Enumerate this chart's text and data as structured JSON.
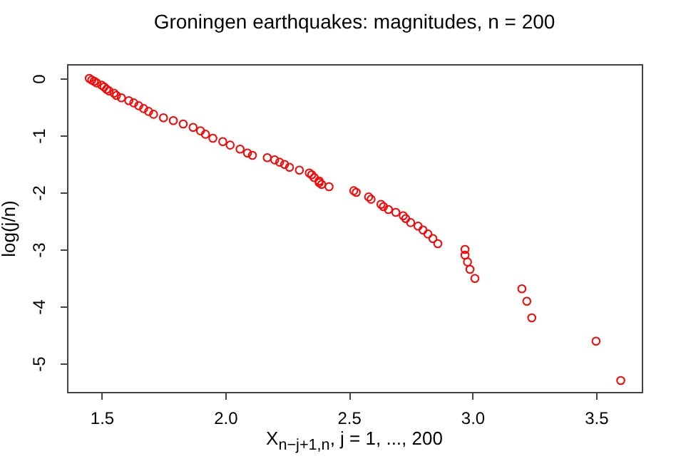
{
  "chart_data": {
    "type": "scatter",
    "title": "Groningen earthquakes: magnitudes,  n = 200",
    "xlabel": "X$_{n−j+1,n}$,  j = 1, ..., 200",
    "ylabel": "log(j/n)",
    "xlim": [
      1.36,
      3.685
    ],
    "ylim": [
      -5.5,
      0.25
    ],
    "xticks": [
      {
        "value": 1.5,
        "label": "1.5"
      },
      {
        "value": 2,
        "label": "2.0"
      },
      {
        "value": 2.5,
        "label": "2.5"
      },
      {
        "value": 3,
        "label": "3.0"
      },
      {
        "value": 3.5,
        "label": "3.5"
      }
    ],
    "yticks": [
      0,
      -1,
      -2,
      -3,
      -4,
      -5
    ],
    "grid": false,
    "legend": false,
    "marker": "circle",
    "series": [
      {
        "color": "#ff0000",
        "x": [
          3.6,
          3.5,
          3.24,
          3.22,
          3.2,
          3.01,
          2.99,
          2.98,
          2.97,
          2.97,
          2.86,
          2.84,
          2.82,
          2.8,
          2.78,
          2.75,
          2.73,
          2.72,
          2.69,
          2.66,
          2.64,
          2.63,
          2.59,
          2.58,
          2.53,
          2.52,
          2.42,
          2.39,
          2.38,
          2.38,
          2.36,
          2.35,
          2.34,
          2.3,
          2.26,
          2.24,
          2.22,
          2.2,
          2.17,
          2.11,
          2.09,
          2.06,
          2.02,
          1.99,
          1.95,
          1.92,
          1.9,
          1.87,
          1.83,
          1.79,
          1.75,
          1.71,
          1.69,
          1.67,
          1.65,
          1.63,
          1.61,
          1.58,
          1.56,
          1.55,
          1.53,
          1.52,
          1.51,
          1.5,
          1.48,
          1.47,
          1.46,
          1.45
        ],
        "values": [
          -5.3,
          -4.61,
          -4.2,
          -3.91,
          -3.69,
          -3.51,
          -3.35,
          -3.22,
          -3.1,
          -3.0,
          -2.9,
          -2.81,
          -2.73,
          -2.66,
          -2.59,
          -2.53,
          -2.46,
          -2.41,
          -2.35,
          -2.3,
          -2.25,
          -2.21,
          -2.12,
          -2.08,
          -2.0,
          -1.97,
          -1.9,
          -1.86,
          -1.83,
          -1.8,
          -1.74,
          -1.69,
          -1.66,
          -1.61,
          -1.56,
          -1.51,
          -1.47,
          -1.43,
          -1.39,
          -1.35,
          -1.31,
          -1.24,
          -1.17,
          -1.11,
          -1.05,
          -0.98,
          -0.92,
          -0.86,
          -0.8,
          -0.74,
          -0.69,
          -0.63,
          -0.58,
          -0.53,
          -0.48,
          -0.43,
          -0.39,
          -0.34,
          -0.3,
          -0.26,
          -0.22,
          -0.19,
          -0.15,
          -0.12,
          -0.08,
          -0.05,
          -0.03,
          0.0
        ]
      }
    ]
  }
}
